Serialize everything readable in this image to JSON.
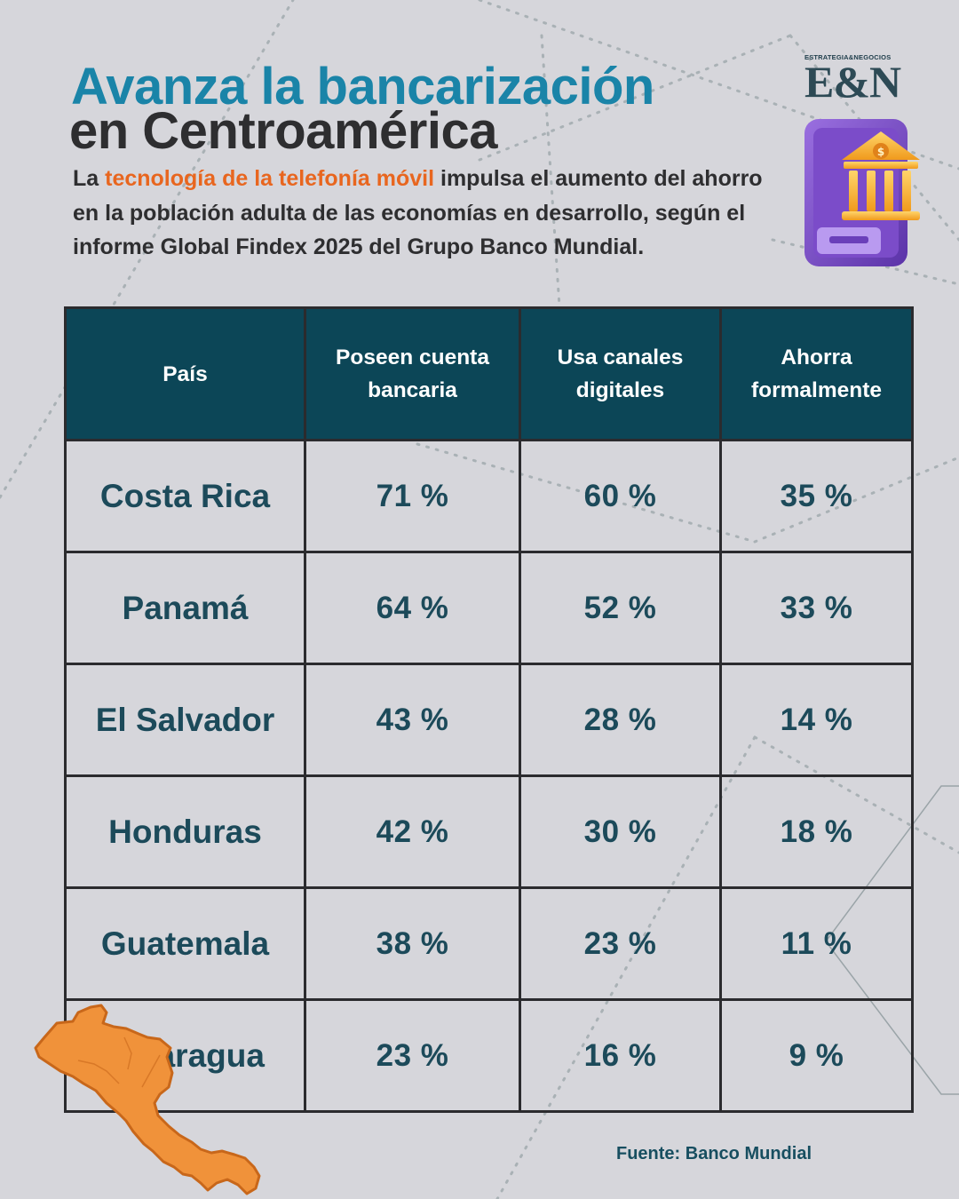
{
  "header": {
    "title_line1": "Avanza la bancarización",
    "title_line2": "en Centroamérica",
    "intro_lead": "La ",
    "intro_highlight": "tecnología de la telefonía móvil",
    "intro_rest": " impulsa el aumento del ahorro en la población adulta de las economías en desarrollo, según el informe Global Findex 2025 del Grupo Banco Mundial."
  },
  "logo": {
    "tagline": "ESTRATEGIA&NEGOCIOS",
    "mark": "E&N"
  },
  "table": {
    "columns": [
      "País",
      "Poseen cuenta bancaria",
      "Usa canales digitales",
      "Ahorra formalmente"
    ],
    "rows": [
      {
        "country": "Costa Rica",
        "cuenta": "71 %",
        "digital": "60 %",
        "ahorro": "35 %"
      },
      {
        "country": "Panamá",
        "cuenta": "64 %",
        "digital": "52 %",
        "ahorro": "33 %"
      },
      {
        "country": "El Salvador",
        "cuenta": "43 %",
        "digital": "28 %",
        "ahorro": "14 %"
      },
      {
        "country": "Honduras",
        "cuenta": "42 %",
        "digital": "30 %",
        "ahorro": "18 %"
      },
      {
        "country": "Guatemala",
        "cuenta": "38 %",
        "digital": "23 %",
        "ahorro": "11 %"
      },
      {
        "country": "Nicaragua",
        "cuenta": "23 %",
        "digital": "16 %",
        "ahorro": "9 %"
      }
    ]
  },
  "footer": {
    "source": "Fuente: Banco Mundial"
  },
  "colors": {
    "background": "#d6d6db",
    "title_blue": "#1a84a8",
    "title_dark": "#2e2e30",
    "highlight_orange": "#e8661f",
    "header_teal": "#0c4657",
    "cell_text": "#1c4a5a",
    "map_orange": "#f0923a"
  }
}
